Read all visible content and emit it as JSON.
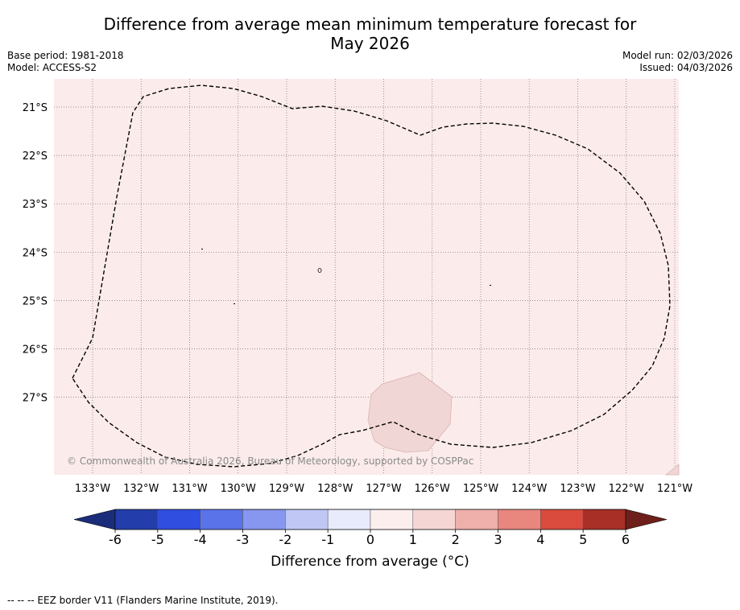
{
  "title": {
    "line1": "Difference from average mean minimum temperature forecast for",
    "line2": "May 2026"
  },
  "meta": {
    "base_period": "Base period: 1981-2018",
    "model": "Model: ACCESS-S2",
    "model_run": "Model run: 02/03/2026",
    "issued": "Issued: 04/03/2026"
  },
  "map": {
    "background_color": "#fbeceb",
    "anomaly_patch_color": "#f0d6d4",
    "longitude_labels": [
      "133°W",
      "132°W",
      "131°W",
      "130°W",
      "129°W",
      "128°W",
      "127°W",
      "126°W",
      "125°W",
      "124°W",
      "123°W",
      "122°W",
      "121°W"
    ],
    "latitude_labels": [
      "21°S",
      "22°S",
      "23°S",
      "24°S",
      "25°S",
      "26°S",
      "27°S"
    ],
    "copyright": "© Commonwealth of Australia 2026, Bureau of Meteorology, supported by COSPPac"
  },
  "colorbar": {
    "title": "Difference from average (°C)",
    "ticks": [
      "-6",
      "-5",
      "-4",
      "-3",
      "-2",
      "-1",
      "0",
      "1",
      "2",
      "3",
      "4",
      "5",
      "6"
    ],
    "colors": [
      "#233eab",
      "#304ee0",
      "#5a73e8",
      "#8796ef",
      "#c0c7f5",
      "#e8ebfb",
      "#fdeeee",
      "#f5d6d4",
      "#efafab",
      "#e9867e",
      "#da4b3e",
      "#a82f26"
    ],
    "extend_low_color": "#1b2d7a",
    "extend_high_color": "#6e1f1a"
  },
  "footer": {
    "legend": "-- -- -- EEZ border V11 (Flanders Marine Institute, 2019)."
  }
}
